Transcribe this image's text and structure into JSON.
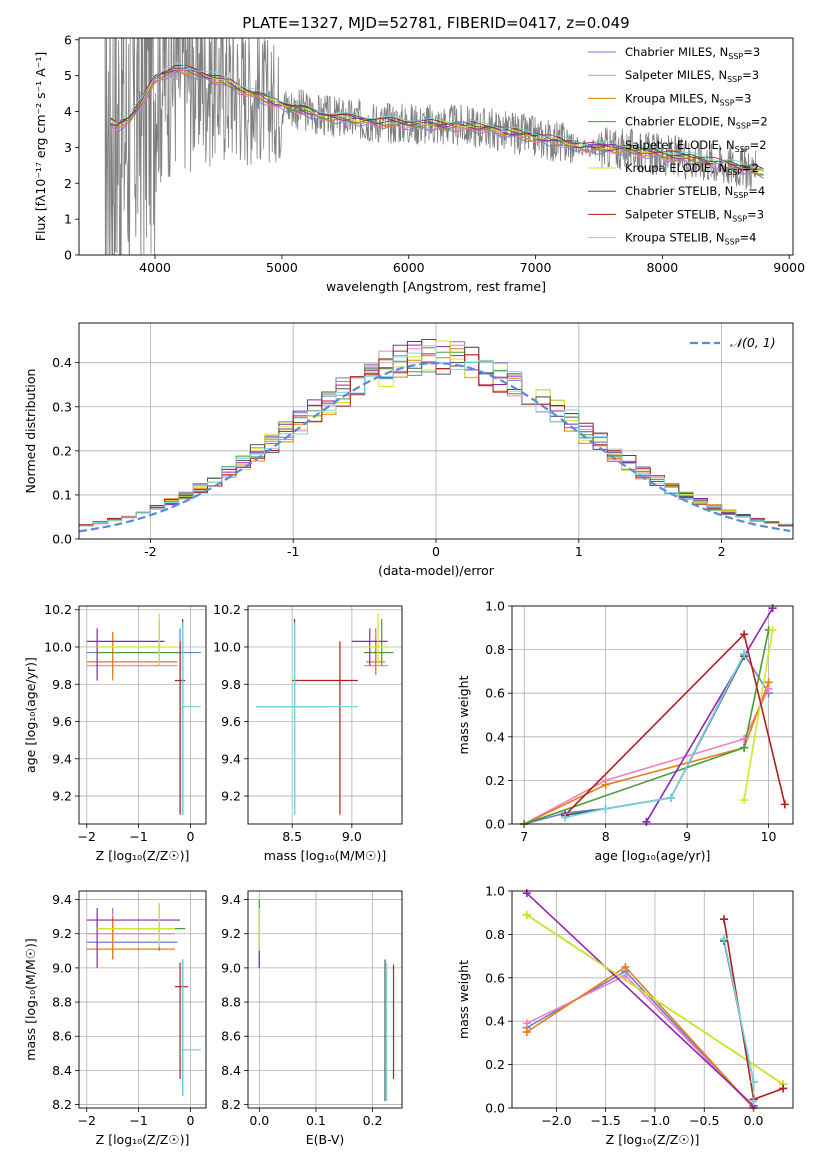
{
  "legend_models": [
    {
      "label": "Chabrier MILES",
      "nssp": "3",
      "color": "#6b7fd6"
    },
    {
      "label": "Salpeter MILES",
      "nssp": "3",
      "color": "#f081c3"
    },
    {
      "label": "Kroupa MILES",
      "nssp": "3",
      "color": "#e87d14"
    },
    {
      "label": "Chabrier ELODIE",
      "nssp": "2",
      "color": "#4a9a3e"
    },
    {
      "label": "Salpeter ELODIE",
      "nssp": "2",
      "color": "#8e24b4"
    },
    {
      "label": "Kroupa ELODIE",
      "nssp": "2",
      "color": "#d3e629"
    },
    {
      "label": "Chabrier STELIB",
      "nssp": "4",
      "color": "#555555"
    },
    {
      "label": "Salpeter STELIB",
      "nssp": "3",
      "color": "#b01f1f"
    },
    {
      "label": "Kroupa STELIB",
      "nssp": "4",
      "color": "#74d6e0"
    }
  ],
  "chart_data": [
    {
      "id": "spectrum",
      "type": "line",
      "title": "PLATE=1327, MJD=52781, FIBERID=0417, z=0.049",
      "xlabel": "wavelength [Angstrom, rest frame]",
      "ylabel": "Flux [fλ10⁻¹⁷ erg cm⁻² s⁻¹ A⁻¹]",
      "xlim": [
        3400,
        9030
      ],
      "ylim": [
        0,
        6.05
      ],
      "xticks": [
        4000,
        5000,
        6000,
        7000,
        8000,
        9000
      ],
      "yticks": [
        0,
        1,
        2,
        3,
        4,
        5,
        6
      ],
      "grid": false,
      "observed_color": "#808080",
      "observed_range": [
        3600,
        8740
      ],
      "model_continuum": {
        "x": [
          3650,
          3700,
          3800,
          3900,
          4000,
          4150,
          4300,
          4500,
          4700,
          4900,
          5100,
          5300,
          5500,
          5800,
          6100,
          6400,
          6600,
          6900,
          7200,
          7400,
          7700,
          8000,
          8300,
          8600,
          8800
        ],
        "y": [
          3.7,
          3.6,
          3.8,
          4.3,
          4.9,
          5.2,
          5.1,
          4.9,
          4.6,
          4.3,
          4.1,
          3.9,
          3.8,
          3.7,
          3.65,
          3.6,
          3.55,
          3.35,
          3.15,
          3.0,
          2.95,
          2.8,
          2.65,
          2.45,
          2.3
        ]
      },
      "legend_position": "right"
    },
    {
      "id": "residuals",
      "type": "step",
      "xlabel": "(data-model)/error",
      "ylabel": "Normed distribution",
      "xlim": [
        -2.5,
        2.5
      ],
      "ylim": [
        0,
        0.49
      ],
      "xticks": [
        -2,
        -1,
        0,
        1,
        2
      ],
      "yticks": [
        0.0,
        0.1,
        0.2,
        0.3,
        0.4
      ],
      "grid": true,
      "gaussian_label": "𝒩(0, 1)",
      "gaussian_color": "#5b8ad8",
      "legend_position": "top-right"
    },
    {
      "id": "age-vs-Z",
      "type": "errorbar",
      "xlabel": "Z [log₁₀(Z/Z☉)]",
      "ylabel": "age  [log₁₀(age/yr)]",
      "xlim": [
        -2.15,
        0.3
      ],
      "ylim": [
        9.05,
        10.22
      ],
      "xticks": [
        -2,
        -1,
        0
      ],
      "xticklabels": [
        "−2",
        "−1",
        "0"
      ],
      "yticks": [
        9.2,
        9.4,
        9.6,
        9.8,
        10.0,
        10.2
      ],
      "grid": true,
      "points": [
        {
          "m": 0,
          "x": -0.2,
          "xe": [
            -2.0,
            0.2
          ],
          "y": 9.97,
          "ye": [
            9.1,
            10.1
          ]
        },
        {
          "m": 1,
          "x": -1.5,
          "xe": [
            -2.0,
            -0.25
          ],
          "y": 9.9,
          "ye": [
            9.85,
            10.08
          ]
        },
        {
          "m": 2,
          "x": -1.5,
          "xe": [
            -2.0,
            -0.25
          ],
          "y": 9.92,
          "ye": [
            9.82,
            10.08
          ]
        },
        {
          "m": 3,
          "x": -0.6,
          "xe": [
            -1.8,
            -0.2
          ],
          "y": 9.97,
          "ye": [
            9.9,
            10.15
          ]
        },
        {
          "m": 4,
          "x": -1.8,
          "xe": [
            -2.0,
            -0.5
          ],
          "y": 10.03,
          "ye": [
            9.82,
            10.1
          ]
        },
        {
          "m": 5,
          "x": -0.6,
          "xe": [
            -1.8,
            -0.3
          ],
          "y": 10.0,
          "ye": [
            9.9,
            10.18
          ]
        },
        {
          "m": 6,
          "x": -0.15,
          "xe": [
            -0.2,
            -0.1
          ],
          "y": 9.68,
          "ye": [
            9.1,
            10.15
          ]
        },
        {
          "m": 7,
          "x": -0.2,
          "xe": [
            -0.3,
            -0.1
          ],
          "y": 9.82,
          "ye": [
            9.1,
            10.03
          ]
        },
        {
          "m": 8,
          "x": -0.15,
          "xe": [
            -0.2,
            0.2
          ],
          "y": 9.68,
          "ye": [
            9.1,
            10.13
          ]
        }
      ]
    },
    {
      "id": "age-vs-mass",
      "type": "errorbar",
      "xlabel": "mass [log₁₀(M/M☉)]",
      "ylabel": "",
      "xlim": [
        8.13,
        9.42
      ],
      "ylim": [
        9.05,
        10.22
      ],
      "xticks": [
        8.5,
        9.0
      ],
      "xticklabels": [
        "8.5",
        "9.0"
      ],
      "yticks": [
        9.2,
        9.4,
        9.6,
        9.8,
        10.0,
        10.2
      ],
      "grid": true,
      "points": [
        {
          "m": 0,
          "x": 9.2,
          "xe": [
            9.1,
            9.3
          ],
          "y": 9.97,
          "ye": [
            9.9,
            10.1
          ]
        },
        {
          "m": 1,
          "x": 9.2,
          "xe": [
            9.1,
            9.3
          ],
          "y": 9.9,
          "ye": [
            9.85,
            10.08
          ]
        },
        {
          "m": 2,
          "x": 9.2,
          "xe": [
            9.12,
            9.28
          ],
          "y": 9.92,
          "ye": [
            9.85,
            10.05
          ]
        },
        {
          "m": 3,
          "x": 9.25,
          "xe": [
            9.1,
            9.35
          ],
          "y": 9.97,
          "ye": [
            9.9,
            10.15
          ]
        },
        {
          "m": 4,
          "x": 9.15,
          "xe": [
            9.0,
            9.3
          ],
          "y": 10.03,
          "ye": [
            9.9,
            10.1
          ]
        },
        {
          "m": 5,
          "x": 9.22,
          "xe": [
            9.12,
            9.3
          ],
          "y": 10.0,
          "ye": [
            9.9,
            10.18
          ]
        },
        {
          "m": 6,
          "x": 8.52,
          "xe": [
            8.2,
            8.8
          ],
          "y": 9.68,
          "ye": [
            9.1,
            10.15
          ]
        },
        {
          "m": 7,
          "x": 8.9,
          "xe": [
            8.5,
            9.05
          ],
          "y": 9.82,
          "ye": [
            9.1,
            10.03
          ]
        },
        {
          "m": 8,
          "x": 8.52,
          "xe": [
            8.2,
            9.05
          ],
          "y": 9.68,
          "ye": [
            9.1,
            10.13
          ]
        }
      ]
    },
    {
      "id": "weight-vs-age",
      "type": "line",
      "xlabel": "age  [log₁₀(age/yr)]",
      "ylabel": "mass weight",
      "xlim": [
        6.85,
        10.3
      ],
      "ylim": [
        0,
        1.0
      ],
      "xticks": [
        7,
        8,
        9,
        10
      ],
      "yticks": [
        0.0,
        0.2,
        0.4,
        0.6,
        0.8,
        1.0
      ],
      "grid": true,
      "series": [
        {
          "m": 0,
          "x": [
            7.0,
            7.5,
            8.0,
            8.8,
            9.7,
            10.0
          ],
          "y": [
            0.0,
            0.05,
            0.07,
            0.12,
            0.78,
            0.6
          ]
        },
        {
          "m": 1,
          "x": [
            7.0,
            8.0,
            9.7,
            10.0
          ],
          "y": [
            0.0,
            0.2,
            0.39,
            0.62
          ]
        },
        {
          "m": 2,
          "x": [
            7.0,
            8.0,
            9.7,
            10.0
          ],
          "y": [
            0.0,
            0.18,
            0.35,
            0.65
          ]
        },
        {
          "m": 3,
          "x": [
            7.0,
            9.7,
            10.0
          ],
          "y": [
            0.0,
            0.35,
            0.89
          ]
        },
        {
          "m": 4,
          "x": [
            8.5,
            10.05
          ],
          "y": [
            0.01,
            0.99
          ]
        },
        {
          "m": 5,
          "x": [
            9.7,
            10.05
          ],
          "y": [
            0.11,
            0.89
          ]
        },
        {
          "m": 6,
          "x": [
            7.5,
            8.0,
            8.8,
            9.7
          ],
          "y": [
            0.04,
            0.07,
            0.12,
            0.77
          ]
        },
        {
          "m": 7,
          "x": [
            7.5,
            9.7,
            10.2
          ],
          "y": [
            0.04,
            0.87,
            0.09
          ]
        },
        {
          "m": 8,
          "x": [
            7.5,
            8.0,
            8.8,
            9.7
          ],
          "y": [
            0.03,
            0.07,
            0.12,
            0.78
          ]
        }
      ]
    },
    {
      "id": "mass-vs-Z",
      "type": "errorbar",
      "xlabel": "Z [log₁₀(Z/Z☉)]",
      "ylabel": "mass [log₁₀(M/M☉)]",
      "xlim": [
        -2.15,
        0.3
      ],
      "ylim": [
        8.18,
        9.45
      ],
      "xticks": [
        -2,
        -1,
        0
      ],
      "xticklabels": [
        "−2",
        "−1",
        "0"
      ],
      "yticks": [
        8.2,
        8.4,
        8.6,
        8.8,
        9.0,
        9.2,
        9.4
      ],
      "grid": true,
      "points": [
        {
          "m": 0,
          "x": -1.5,
          "xe": [
            -2.0,
            -0.25
          ],
          "y": 9.15,
          "ye": [
            9.05,
            9.35
          ]
        },
        {
          "m": 1,
          "x": -1.5,
          "xe": [
            -2.0,
            -0.3
          ],
          "y": 9.2,
          "ye": [
            9.1,
            9.32
          ]
        },
        {
          "m": 2,
          "x": -1.5,
          "xe": [
            -2.0,
            -0.3
          ],
          "y": 9.11,
          "ye": [
            9.05,
            9.3
          ]
        },
        {
          "m": 3,
          "x": -0.6,
          "xe": [
            -1.8,
            -0.1
          ],
          "y": 9.23,
          "ye": [
            9.1,
            9.38
          ]
        },
        {
          "m": 4,
          "x": -1.8,
          "xe": [
            -2.0,
            -0.2
          ],
          "y": 9.28,
          "ye": [
            9.0,
            9.35
          ]
        },
        {
          "m": 5,
          "x": -0.6,
          "xe": [
            -1.8,
            -0.3
          ],
          "y": 9.23,
          "ye": [
            9.12,
            9.38
          ]
        },
        {
          "m": 6,
          "x": -0.15,
          "xe": [
            -0.2,
            -0.1
          ],
          "y": 8.52,
          "ye": [
            8.25,
            9.05
          ]
        },
        {
          "m": 7,
          "x": -0.2,
          "xe": [
            -0.3,
            -0.05
          ],
          "y": 8.89,
          "ye": [
            8.35,
            9.03
          ]
        },
        {
          "m": 8,
          "x": -0.15,
          "xe": [
            -0.2,
            0.2
          ],
          "y": 8.52,
          "ye": [
            8.25,
            9.05
          ]
        }
      ]
    },
    {
      "id": "mass-vs-ebv",
      "type": "errorbar",
      "xlabel": "E(B-V)",
      "ylabel": "",
      "xlim": [
        -0.02,
        0.252
      ],
      "ylim": [
        8.18,
        9.45
      ],
      "xticks": [
        0.0,
        0.1,
        0.2
      ],
      "xticklabels": [
        "0.0",
        "0.1",
        "0.2"
      ],
      "yticks": [
        8.2,
        8.4,
        8.6,
        8.8,
        9.0,
        9.2,
        9.4
      ],
      "grid": true,
      "points": [
        {
          "m": 0,
          "x": 0.0,
          "xe": [
            0.0,
            0.0
          ],
          "y": 9.15,
          "ye": [
            9.0,
            9.35
          ]
        },
        {
          "m": 3,
          "x": 0.0,
          "xe": [
            0.0,
            0.0
          ],
          "y": 9.23,
          "ye": [
            9.1,
            9.4
          ]
        },
        {
          "m": 4,
          "x": 0.0,
          "xe": [
            0.0,
            0.0
          ],
          "y": 9.05,
          "ye": [
            9.0,
            9.1
          ]
        },
        {
          "m": 5,
          "x": 0.0,
          "xe": [
            0.0,
            0.0
          ],
          "y": 9.2,
          "ye": [
            9.1,
            9.35
          ]
        },
        {
          "m": 6,
          "x": 0.222,
          "xe": [
            0.222,
            0.222
          ],
          "y": 8.52,
          "ye": [
            8.22,
            9.05
          ]
        },
        {
          "m": 7,
          "x": 0.237,
          "xe": [
            0.237,
            0.237
          ],
          "y": 8.89,
          "ye": [
            8.35,
            9.02
          ]
        },
        {
          "m": 8,
          "x": 0.225,
          "xe": [
            0.225,
            0.225
          ],
          "y": 8.52,
          "ye": [
            8.22,
            9.03
          ]
        }
      ]
    },
    {
      "id": "weight-vs-Z",
      "type": "line",
      "xlabel": "Z [log₁₀(Z/Z☉)]",
      "ylabel": "mass weight",
      "xlim": [
        -2.45,
        0.4
      ],
      "ylim": [
        0,
        1.0
      ],
      "xticks": [
        -2.0,
        -1.5,
        -1.0,
        -0.5,
        0.0
      ],
      "xticklabels": [
        "−2.0",
        "−1.5",
        "−1.0",
        "−0.5",
        "0.0"
      ],
      "yticks": [
        0.0,
        0.2,
        0.4,
        0.6,
        0.8,
        1.0
      ],
      "grid": true,
      "series": [
        {
          "m": 0,
          "x": [
            -2.3,
            -1.3,
            0.0
          ],
          "y": [
            0.37,
            0.63,
            0.0
          ]
        },
        {
          "m": 1,
          "x": [
            -2.3,
            -1.3,
            0.0
          ],
          "y": [
            0.39,
            0.61,
            0.0
          ]
        },
        {
          "m": 2,
          "x": [
            -2.3,
            -1.3,
            0.0
          ],
          "y": [
            0.35,
            0.65,
            0.0
          ]
        },
        {
          "m": 3,
          "x": [
            -2.3,
            0.3
          ],
          "y": [
            0.89,
            0.11
          ]
        },
        {
          "m": 4,
          "x": [
            -2.3,
            0.0
          ],
          "y": [
            0.99,
            0.01
          ]
        },
        {
          "m": 5,
          "x": [
            -2.3,
            0.3
          ],
          "y": [
            0.89,
            0.11
          ]
        },
        {
          "m": 6,
          "x": [
            -0.3,
            0.0,
            0.0
          ],
          "y": [
            0.77,
            0.12,
            0.04
          ]
        },
        {
          "m": 7,
          "x": [
            -0.3,
            0.0,
            0.3
          ],
          "y": [
            0.87,
            0.04,
            0.09
          ]
        },
        {
          "m": 8,
          "x": [
            -0.3,
            0.0,
            0.0
          ],
          "y": [
            0.78,
            0.12,
            0.03
          ]
        }
      ]
    }
  ]
}
